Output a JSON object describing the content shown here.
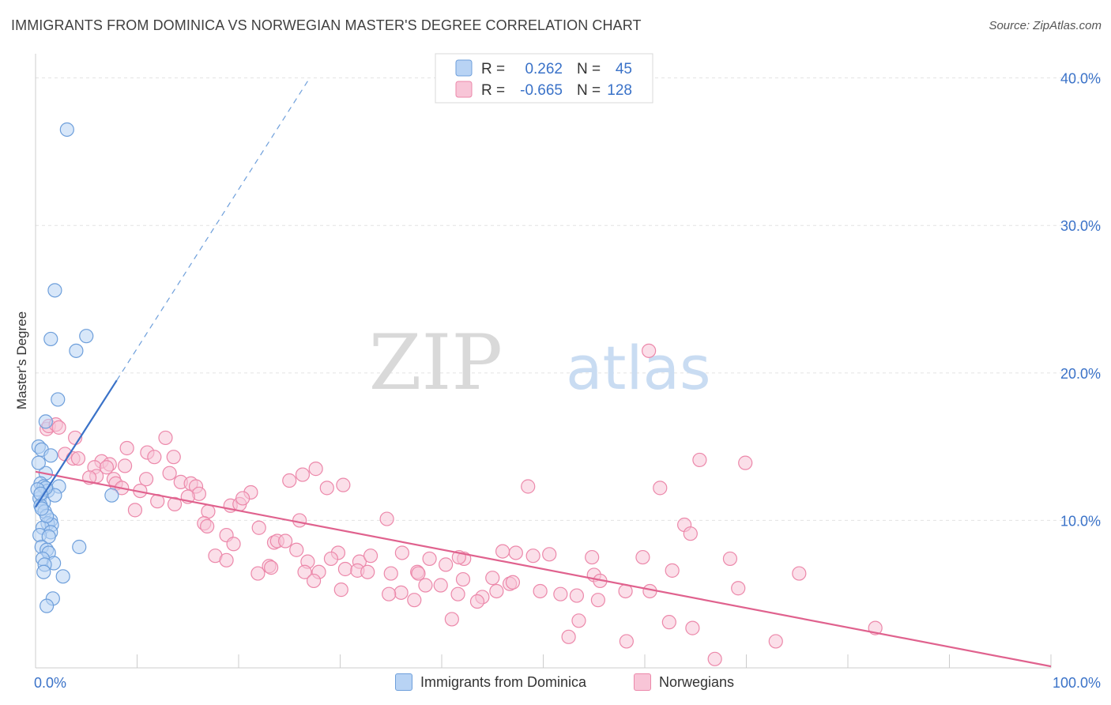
{
  "title": "IMMIGRANTS FROM DOMINICA VS NORWEGIAN MASTER'S DEGREE CORRELATION CHART",
  "source": "Source: ZipAtlas.com",
  "watermark": {
    "zip": "ZIP",
    "atlas": "atlas"
  },
  "colors": {
    "blue_fill": "#b8d3f4",
    "blue_stroke": "#6e9fdb",
    "blue_line": "#3a72c8",
    "pink_fill": "#f8c5d7",
    "pink_stroke": "#ec88aa",
    "pink_line": "#e0628e",
    "axis_label": "#3a72c8",
    "grid": "#e3e3e3"
  },
  "legend_top": [
    {
      "r_label": "R =",
      "r_value": "0.262",
      "n_label": "N =",
      "n_value": "45",
      "series": "blue"
    },
    {
      "r_label": "R =",
      "r_value": "-0.665",
      "n_label": "N =",
      "n_value": "128",
      "series": "pink"
    }
  ],
  "chart_data": {
    "type": "scatter",
    "title": "IMMIGRANTS FROM DOMINICA VS NORWEGIAN MASTER'S DEGREE CORRELATION CHART",
    "xlabel": "",
    "ylabel": "Master's Degree",
    "xlim": [
      0,
      100
    ],
    "ylim": [
      0,
      41
    ],
    "x_tick_labels": [
      {
        "value": 0,
        "label": "0.0%"
      },
      {
        "value": 100,
        "label": "100.0%"
      }
    ],
    "y_tick_labels": [
      {
        "value": 10,
        "label": "10.0%"
      },
      {
        "value": 20,
        "label": "20.0%"
      },
      {
        "value": 30,
        "label": "30.0%"
      },
      {
        "value": 40,
        "label": "40.0%"
      }
    ],
    "legend_position": "top-center",
    "series": [
      {
        "name": "Immigrants from Dominica",
        "color": "blue",
        "trend": {
          "x0": 0,
          "y0": 10.9,
          "x1": 8,
          "y1": 19.5,
          "dash_to_x": 27,
          "dash_to_y": 40
        },
        "points": [
          [
            3.1,
            36.5
          ],
          [
            1.9,
            25.6
          ],
          [
            1.5,
            22.3
          ],
          [
            5.0,
            22.5
          ],
          [
            4.0,
            21.5
          ],
          [
            2.2,
            18.2
          ],
          [
            1.0,
            16.7
          ],
          [
            0.3,
            15.0
          ],
          [
            0.6,
            14.8
          ],
          [
            1.0,
            13.2
          ],
          [
            1.5,
            14.4
          ],
          [
            0.3,
            13.9
          ],
          [
            0.5,
            12.5
          ],
          [
            0.8,
            12.3
          ],
          [
            1.2,
            12.0
          ],
          [
            2.3,
            12.3
          ],
          [
            1.9,
            11.7
          ],
          [
            0.4,
            11.5
          ],
          [
            0.8,
            11.2
          ],
          [
            0.5,
            11.0
          ],
          [
            0.9,
            10.6
          ],
          [
            1.5,
            10.0
          ],
          [
            1.2,
            9.8
          ],
          [
            1.6,
            9.7
          ],
          [
            0.7,
            9.5
          ],
          [
            1.5,
            9.2
          ],
          [
            0.4,
            9.0
          ],
          [
            1.3,
            8.9
          ],
          [
            0.6,
            8.2
          ],
          [
            1.1,
            8.0
          ],
          [
            1.3,
            7.8
          ],
          [
            0.7,
            7.4
          ],
          [
            1.8,
            7.1
          ],
          [
            0.9,
            7.0
          ],
          [
            0.8,
            6.5
          ],
          [
            2.7,
            6.2
          ],
          [
            4.3,
            8.2
          ],
          [
            7.5,
            11.7
          ],
          [
            1.0,
            12.2
          ],
          [
            1.1,
            10.3
          ],
          [
            0.2,
            12.1
          ],
          [
            0.5,
            11.8
          ],
          [
            1.7,
            4.7
          ],
          [
            1.1,
            4.2
          ],
          [
            0.6,
            10.8
          ]
        ]
      },
      {
        "name": "Norwegians",
        "color": "pink",
        "trend": {
          "x0": 0,
          "y0": 13.3,
          "x1": 100,
          "y1": 0.1
        },
        "points": [
          [
            1.1,
            16.2
          ],
          [
            1.3,
            16.4
          ],
          [
            2.0,
            16.5
          ],
          [
            2.3,
            16.3
          ],
          [
            3.9,
            15.6
          ],
          [
            9.0,
            14.9
          ],
          [
            12.8,
            15.6
          ],
          [
            2.9,
            14.5
          ],
          [
            3.7,
            14.2
          ],
          [
            4.2,
            14.2
          ],
          [
            6.5,
            14.0
          ],
          [
            7.3,
            13.8
          ],
          [
            8.8,
            13.7
          ],
          [
            11.0,
            14.6
          ],
          [
            11.7,
            14.3
          ],
          [
            13.6,
            14.3
          ],
          [
            5.8,
            13.6
          ],
          [
            7.0,
            13.6
          ],
          [
            6.0,
            13.0
          ],
          [
            5.3,
            12.9
          ],
          [
            7.7,
            12.8
          ],
          [
            10.9,
            12.8
          ],
          [
            13.2,
            13.2
          ],
          [
            14.3,
            12.6
          ],
          [
            15.3,
            12.5
          ],
          [
            15.8,
            12.3
          ],
          [
            7.9,
            12.5
          ],
          [
            8.5,
            12.2
          ],
          [
            10.3,
            12.0
          ],
          [
            16.1,
            11.8
          ],
          [
            21.2,
            11.9
          ],
          [
            13.7,
            11.1
          ],
          [
            9.8,
            10.7
          ],
          [
            17.0,
            10.6
          ],
          [
            19.2,
            11.0
          ],
          [
            20.1,
            11.1
          ],
          [
            16.6,
            9.8
          ],
          [
            22.0,
            9.5
          ],
          [
            23.5,
            8.5
          ],
          [
            18.8,
            9.0
          ],
          [
            19.5,
            8.4
          ],
          [
            17.7,
            7.6
          ],
          [
            23.8,
            8.6
          ],
          [
            24.6,
            8.6
          ],
          [
            25.7,
            8.0
          ],
          [
            26.8,
            7.2
          ],
          [
            29.8,
            7.8
          ],
          [
            29.1,
            7.4
          ],
          [
            31.9,
            7.2
          ],
          [
            33.0,
            7.6
          ],
          [
            36.1,
            7.8
          ],
          [
            38.8,
            7.4
          ],
          [
            23.0,
            6.9
          ],
          [
            21.9,
            6.4
          ],
          [
            23.2,
            6.8
          ],
          [
            26.5,
            6.5
          ],
          [
            27.9,
            6.5
          ],
          [
            30.5,
            6.7
          ],
          [
            31.7,
            6.6
          ],
          [
            32.7,
            6.5
          ],
          [
            35.0,
            6.4
          ],
          [
            37.6,
            6.5
          ],
          [
            37.7,
            6.4
          ],
          [
            40.4,
            7.0
          ],
          [
            42.1,
            6.0
          ],
          [
            45.0,
            6.1
          ],
          [
            46.7,
            5.7
          ],
          [
            47.0,
            5.8
          ],
          [
            49.7,
            5.2
          ],
          [
            51.7,
            5.0
          ],
          [
            53.3,
            4.9
          ],
          [
            45.4,
            5.2
          ],
          [
            44.0,
            4.8
          ],
          [
            43.5,
            4.5
          ],
          [
            41.6,
            5.0
          ],
          [
            39.9,
            5.6
          ],
          [
            38.4,
            5.6
          ],
          [
            37.3,
            4.6
          ],
          [
            36.0,
            5.1
          ],
          [
            34.8,
            5.0
          ],
          [
            30.1,
            5.3
          ],
          [
            18.8,
            7.3
          ],
          [
            55.0,
            6.3
          ],
          [
            55.6,
            5.9
          ],
          [
            55.4,
            4.6
          ],
          [
            58.1,
            5.2
          ],
          [
            60.5,
            5.2
          ],
          [
            62.7,
            6.6
          ],
          [
            59.8,
            7.5
          ],
          [
            54.8,
            7.5
          ],
          [
            49.0,
            7.6
          ],
          [
            50.6,
            7.7
          ],
          [
            47.3,
            7.8
          ],
          [
            46.0,
            7.9
          ],
          [
            42.2,
            7.4
          ],
          [
            41.7,
            7.5
          ],
          [
            26.0,
            10.0
          ],
          [
            34.6,
            10.1
          ],
          [
            28.7,
            12.2
          ],
          [
            30.3,
            12.4
          ],
          [
            26.3,
            13.1
          ],
          [
            27.6,
            13.5
          ],
          [
            25.0,
            12.7
          ],
          [
            48.5,
            12.3
          ],
          [
            60.4,
            21.5
          ],
          [
            61.5,
            12.2
          ],
          [
            65.4,
            14.1
          ],
          [
            69.9,
            13.9
          ],
          [
            63.9,
            9.7
          ],
          [
            64.5,
            9.1
          ],
          [
            68.4,
            7.4
          ],
          [
            75.2,
            6.4
          ],
          [
            69.2,
            5.4
          ],
          [
            52.5,
            2.1
          ],
          [
            58.2,
            1.8
          ],
          [
            62.4,
            3.1
          ],
          [
            64.7,
            2.7
          ],
          [
            72.9,
            1.8
          ],
          [
            82.7,
            2.7
          ],
          [
            53.5,
            3.2
          ],
          [
            41.0,
            3.3
          ],
          [
            66.9,
            0.6
          ],
          [
            27.4,
            5.9
          ],
          [
            15.0,
            11.6
          ],
          [
            16.9,
            9.6
          ],
          [
            12.0,
            11.3
          ],
          [
            20.4,
            11.5
          ]
        ]
      }
    ]
  },
  "legend_bottom": [
    {
      "label": "Immigrants from Dominica",
      "series": "blue"
    },
    {
      "label": "Norwegians",
      "series": "pink"
    }
  ]
}
